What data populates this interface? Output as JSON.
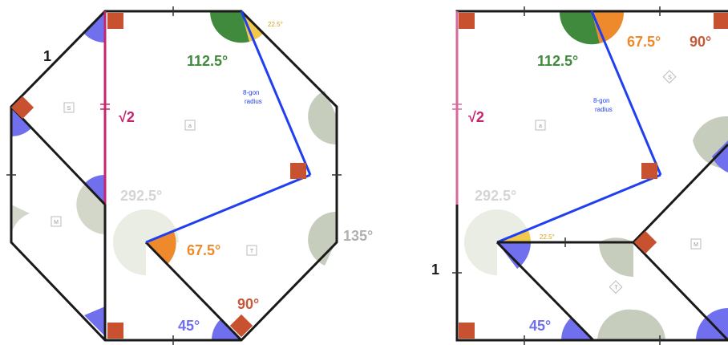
{
  "left_figure": {
    "side_label": "1",
    "sqrt_label": "√2",
    "angle_112": "112.5°",
    "angle_22": "22.5°",
    "angle_292": "292.5°",
    "angle_67": "67.5°",
    "angle_90": "90°",
    "angle_45": "45°",
    "angle_135": "135°",
    "radius_label_line1": "8-gon",
    "radius_label_line2": "radius",
    "piece_markers": [
      "S",
      "a",
      "M",
      "T"
    ]
  },
  "right_figure": {
    "side_label": "1",
    "sqrt_label": "√2",
    "angle_112": "112.5°",
    "angle_67": "67.5°",
    "angle_90": "90°",
    "angle_292": "292.5°",
    "angle_22": "22.5°",
    "angle_45": "45°",
    "radius_label_line1": "8-gon",
    "radius_label_line2": "radius",
    "piece_markers": [
      "a",
      "S",
      "M",
      "T"
    ]
  },
  "colors": {
    "green": "#3f8a3c",
    "orange": "#ee8a2c",
    "blue_angle": "#7070ee",
    "gray_angle": "#c7cdbd",
    "magenta": "#c8246e",
    "radius_line": "#1f3ff0",
    "red_square": "#c8512f",
    "yellow": "#f2c94c"
  }
}
